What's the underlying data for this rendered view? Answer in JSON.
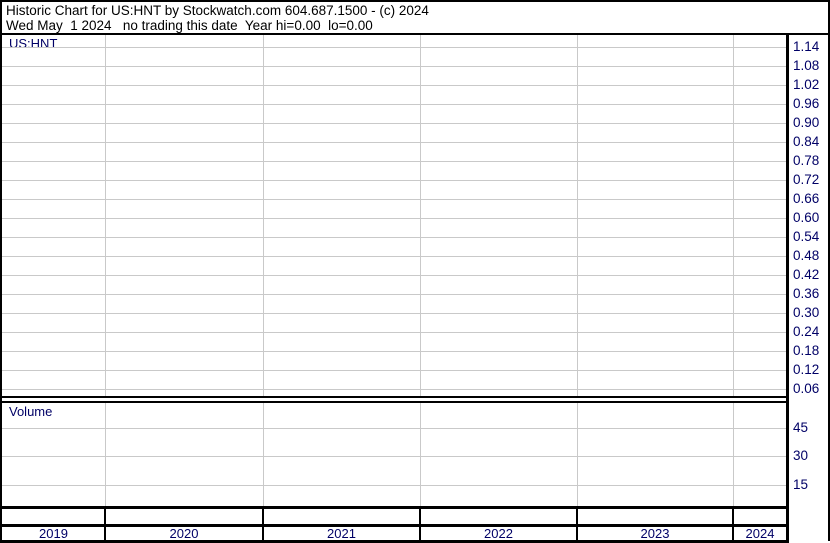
{
  "header": {
    "title": "Historic Chart for US:HNT by Stockwatch.com 604.687.1500 - (c) 2024",
    "subtitle": "Wed May  1 2024   no trading this date  Year hi=0.00  lo=0.00"
  },
  "price_panel": {
    "symbol_label": "US:HNT",
    "y_axis_labels": [
      "1.14",
      "1.08",
      "1.02",
      "0.96",
      "0.90",
      "0.84",
      "0.78",
      "0.72",
      "0.66",
      "0.60",
      "0.54",
      "0.48",
      "0.42",
      "0.36",
      "0.30",
      "0.24",
      "0.18",
      "0.12",
      "0.06"
    ]
  },
  "volume_panel": {
    "label": "Volume",
    "y_axis_labels": [
      "45",
      "30",
      "15"
    ]
  },
  "x_axis": {
    "year_labels": [
      "2019",
      "2020",
      "2021",
      "2022",
      "2023",
      "2024"
    ]
  },
  "colors": {
    "background": "#ffffff",
    "border": "#000000",
    "gridline": "#c9c9c9",
    "header_text": "#000000",
    "label_text": "#000066"
  },
  "chart_data": {
    "type": "line",
    "title": "Historic Chart for US:HNT",
    "subtitle": "Wed May 1 2024 - no trading this date",
    "x_categories": [
      "2019",
      "2020",
      "2021",
      "2022",
      "2023",
      "2024"
    ],
    "price_axis": {
      "ticks": [
        1.14,
        1.08,
        1.02,
        0.96,
        0.9,
        0.84,
        0.78,
        0.72,
        0.66,
        0.6,
        0.54,
        0.48,
        0.42,
        0.36,
        0.3,
        0.24,
        0.18,
        0.12,
        0.06
      ],
      "tick_step": 0.06,
      "range": [
        0.03,
        1.17
      ]
    },
    "volume_axis": {
      "ticks": [
        45,
        30,
        15
      ],
      "tick_step": 15,
      "range": [
        0,
        52
      ]
    },
    "series": [
      {
        "name": "US:HNT price",
        "x": [],
        "y": []
      },
      {
        "name": "US:HNT volume",
        "x": [],
        "y": []
      }
    ],
    "annotations": [
      "no trading this date",
      "Year hi=0.00",
      "lo=0.00"
    ],
    "grid": true,
    "legend": false,
    "note": "Chart grid is empty - no price or volume data is plotted in the image"
  }
}
